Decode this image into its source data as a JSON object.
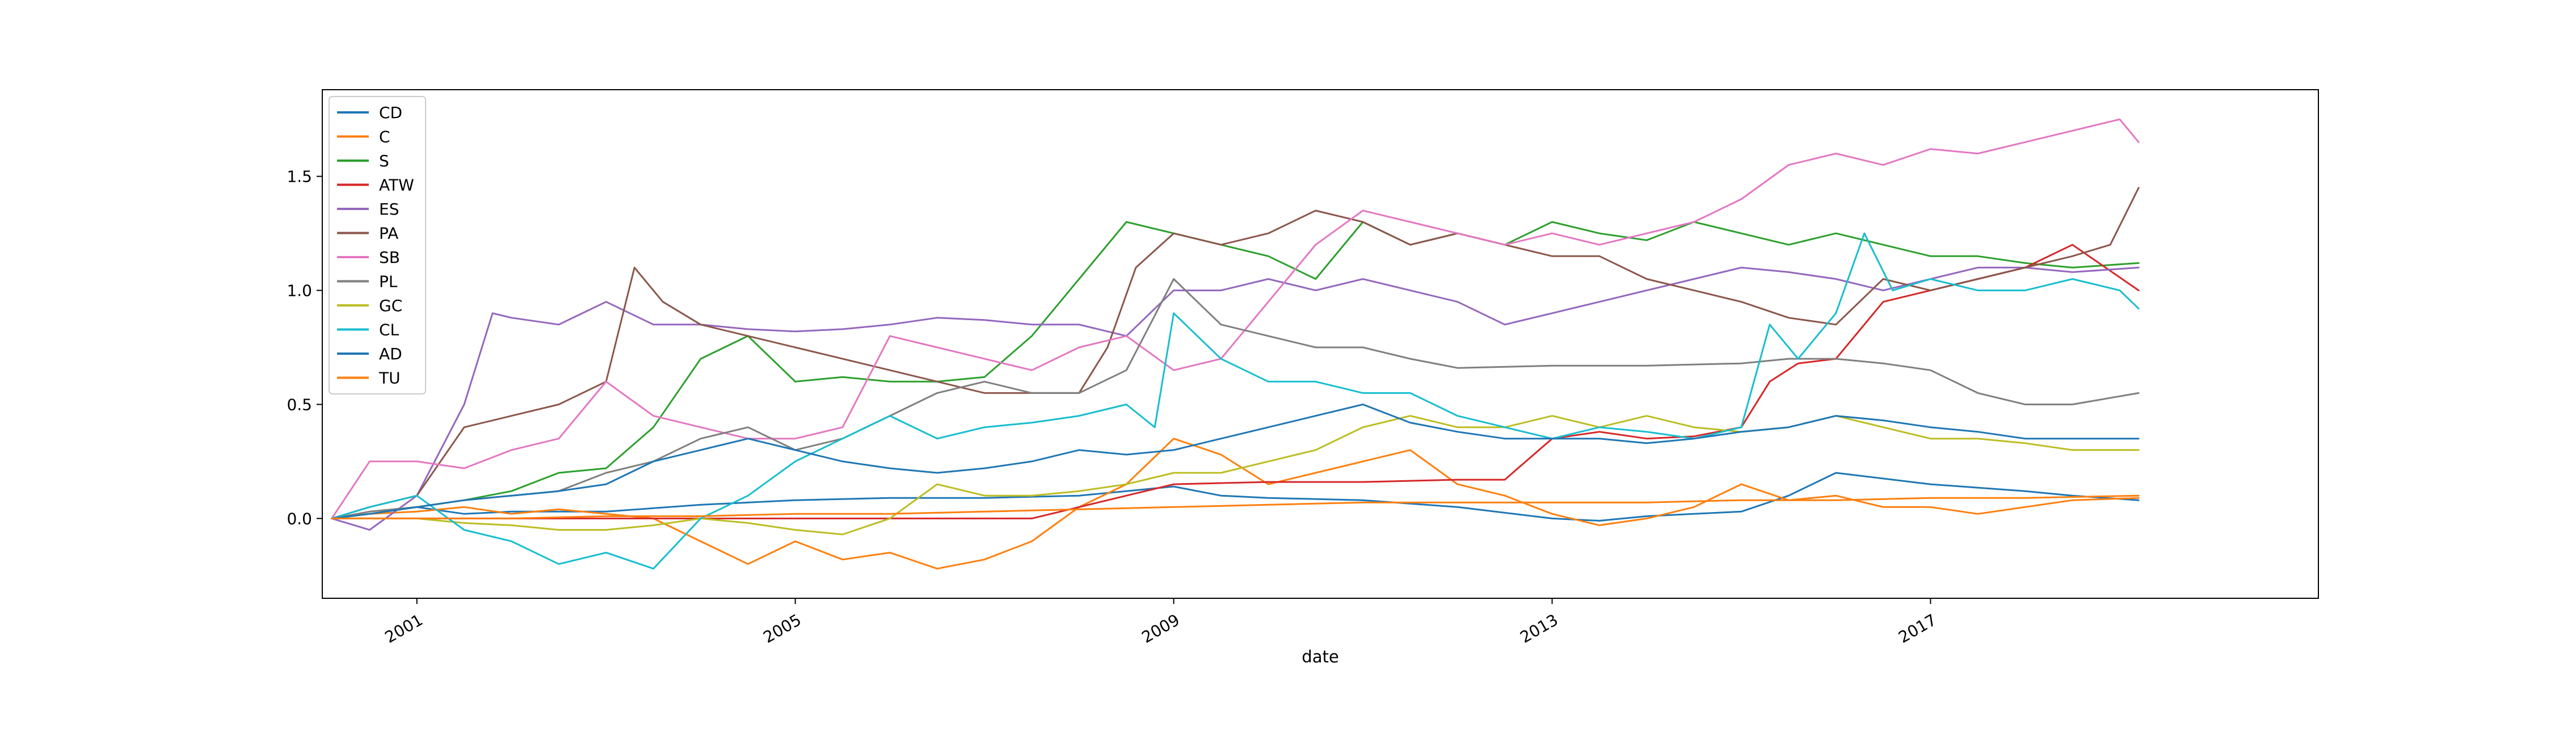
{
  "chart_data": {
    "type": "line",
    "title": "",
    "xlabel": "date",
    "ylabel": "",
    "xlim": [
      2000.0,
      2021.1
    ],
    "ylim": [
      -0.35,
      1.88
    ],
    "xticks": [
      2001,
      2005,
      2009,
      2013,
      2017
    ],
    "xtick_labels": [
      "2001",
      "2005",
      "2009",
      "2013",
      "2017"
    ],
    "yticks": [
      0.0,
      0.5,
      1.0,
      1.5
    ],
    "ytick_labels": [
      "0.0",
      "0.5",
      "1.0",
      "1.5"
    ],
    "grid": false,
    "legend_position": "upper-left",
    "series": [
      {
        "name": "CD",
        "color": "#1f77b4",
        "x": [
          2000.1,
          2000.5,
          2001.0,
          2001.5,
          2002.0,
          2003.0,
          2004.0,
          2005.0,
          2006.0,
          2007.0,
          2008.0,
          2008.5,
          2009.0,
          2009.5,
          2010.0,
          2011.0,
          2012.0,
          2013.0,
          2013.5,
          2014.0,
          2014.5,
          2015.0,
          2015.5,
          2016.0,
          2017.0,
          2018.0,
          2018.5,
          2019.2
        ],
        "y": [
          0.0,
          0.02,
          0.05,
          0.02,
          0.03,
          0.03,
          0.06,
          0.08,
          0.09,
          0.09,
          0.1,
          0.12,
          0.14,
          0.1,
          0.09,
          0.08,
          0.05,
          0.0,
          -0.01,
          0.01,
          0.02,
          0.03,
          0.1,
          0.2,
          0.15,
          0.12,
          0.1,
          0.08
        ]
      },
      {
        "name": "C",
        "color": "#ff7f0e",
        "x": [
          2000.1,
          2000.5,
          2001.0,
          2001.5,
          2002.0,
          2002.5,
          2003.0,
          2003.5,
          2004.0,
          2004.5,
          2005.0,
          2005.5,
          2006.0,
          2006.5,
          2007.0,
          2007.5,
          2008.0,
          2008.5,
          2009.0,
          2009.5,
          2010.0,
          2010.5,
          2011.0,
          2011.5,
          2012.0,
          2012.5,
          2013.0,
          2013.5,
          2014.0,
          2014.5,
          2015.0,
          2015.5,
          2016.0,
          2016.5,
          2017.0,
          2017.5,
          2018.0,
          2018.5,
          2019.2
        ],
        "y": [
          0.0,
          0.02,
          0.03,
          0.05,
          0.02,
          0.04,
          0.02,
          0.0,
          -0.1,
          -0.2,
          -0.1,
          -0.18,
          -0.15,
          -0.22,
          -0.18,
          -0.1,
          0.05,
          0.15,
          0.35,
          0.28,
          0.15,
          0.2,
          0.25,
          0.3,
          0.15,
          0.1,
          0.02,
          -0.03,
          0.0,
          0.05,
          0.15,
          0.08,
          0.1,
          0.05,
          0.05,
          0.02,
          0.05,
          0.08,
          0.09
        ]
      },
      {
        "name": "S",
        "color": "#2ca02c",
        "x": [
          2000.1,
          2000.5,
          2001.0,
          2001.5,
          2002.0,
          2002.5,
          2003.0,
          2003.5,
          2004.0,
          2004.5,
          2005.0,
          2005.5,
          2006.0,
          2006.5,
          2007.0,
          2007.5,
          2008.0,
          2008.5,
          2009.0,
          2009.5,
          2010.0,
          2010.5,
          2011.0,
          2011.5,
          2012.0,
          2012.5,
          2013.0,
          2013.5,
          2014.0,
          2014.5,
          2015.0,
          2015.5,
          2016.0,
          2016.5,
          2017.0,
          2017.5,
          2018.0,
          2018.5,
          2019.2
        ],
        "y": [
          0.0,
          0.02,
          0.05,
          0.08,
          0.12,
          0.2,
          0.22,
          0.4,
          0.7,
          0.8,
          0.6,
          0.62,
          0.6,
          0.6,
          0.62,
          0.8,
          1.05,
          1.3,
          1.25,
          1.2,
          1.15,
          1.05,
          1.3,
          1.2,
          1.25,
          1.2,
          1.3,
          1.25,
          1.22,
          1.3,
          1.25,
          1.2,
          1.25,
          1.2,
          1.15,
          1.15,
          1.12,
          1.1,
          1.12
        ]
      },
      {
        "name": "ATW",
        "color": "#d62728",
        "x": [
          2000.1,
          2001.0,
          2002.0,
          2003.0,
          2004.0,
          2005.0,
          2006.0,
          2007.0,
          2007.5,
          2008.0,
          2008.5,
          2009.0,
          2010.0,
          2011.0,
          2012.0,
          2012.5,
          2013.0,
          2013.5,
          2014.0,
          2014.5,
          2015.0,
          2015.3,
          2015.6,
          2016.0,
          2016.5,
          2017.0,
          2017.5,
          2018.0,
          2018.5,
          2019.2
        ],
        "y": [
          0.0,
          0.0,
          0.0,
          0.0,
          0.0,
          0.0,
          0.0,
          0.0,
          0.0,
          0.05,
          0.1,
          0.15,
          0.16,
          0.16,
          0.17,
          0.17,
          0.35,
          0.38,
          0.35,
          0.36,
          0.4,
          0.6,
          0.68,
          0.7,
          0.95,
          1.0,
          1.05,
          1.1,
          1.2,
          1.0
        ]
      },
      {
        "name": "ES",
        "color": "#9467bd",
        "x": [
          2000.1,
          2000.5,
          2001.0,
          2001.5,
          2001.8,
          2002.0,
          2002.5,
          2003.0,
          2003.5,
          2004.0,
          2004.5,
          2005.0,
          2005.5,
          2006.0,
          2006.5,
          2007.0,
          2007.5,
          2008.0,
          2008.5,
          2009.0,
          2009.5,
          2010.0,
          2010.5,
          2011.0,
          2011.5,
          2012.0,
          2012.5,
          2013.0,
          2013.5,
          2014.0,
          2014.5,
          2015.0,
          2015.5,
          2016.0,
          2016.5,
          2017.0,
          2017.5,
          2018.0,
          2018.5,
          2019.2
        ],
        "y": [
          0.0,
          -0.05,
          0.1,
          0.5,
          0.9,
          0.88,
          0.85,
          0.95,
          0.85,
          0.85,
          0.83,
          0.82,
          0.83,
          0.85,
          0.88,
          0.87,
          0.85,
          0.85,
          0.8,
          1.0,
          1.0,
          1.05,
          1.0,
          1.05,
          1.0,
          0.95,
          0.85,
          0.9,
          0.95,
          1.0,
          1.05,
          1.1,
          1.08,
          1.05,
          1.0,
          1.05,
          1.1,
          1.1,
          1.08,
          1.1
        ]
      },
      {
        "name": "PA",
        "color": "#8c564b",
        "x": [
          2000.1,
          2000.5,
          2001.0,
          2001.5,
          2002.0,
          2002.5,
          2003.0,
          2003.3,
          2003.6,
          2004.0,
          2004.5,
          2005.0,
          2005.5,
          2006.0,
          2006.5,
          2007.0,
          2007.5,
          2008.0,
          2008.3,
          2008.6,
          2009.0,
          2009.5,
          2010.0,
          2010.5,
          2011.0,
          2011.5,
          2012.0,
          2012.5,
          2013.0,
          2013.5,
          2014.0,
          2014.5,
          2015.0,
          2015.5,
          2016.0,
          2016.5,
          2017.0,
          2017.5,
          2018.0,
          2018.5,
          2018.9,
          2019.2
        ],
        "y": [
          0.0,
          0.05,
          0.1,
          0.4,
          0.45,
          0.5,
          0.6,
          1.1,
          0.95,
          0.85,
          0.8,
          0.75,
          0.7,
          0.65,
          0.6,
          0.55,
          0.55,
          0.55,
          0.75,
          1.1,
          1.25,
          1.2,
          1.25,
          1.35,
          1.3,
          1.2,
          1.25,
          1.2,
          1.15,
          1.15,
          1.05,
          1.0,
          0.95,
          0.88,
          0.85,
          1.05,
          1.0,
          1.05,
          1.1,
          1.15,
          1.2,
          1.45
        ]
      },
      {
        "name": "SB",
        "color": "#e377c2",
        "x": [
          2000.1,
          2000.5,
          2001.0,
          2001.5,
          2002.0,
          2002.5,
          2003.0,
          2003.5,
          2004.0,
          2004.5,
          2005.0,
          2005.5,
          2006.0,
          2006.5,
          2007.0,
          2007.5,
          2008.0,
          2008.5,
          2009.0,
          2009.5,
          2010.0,
          2010.5,
          2011.0,
          2011.5,
          2012.0,
          2012.5,
          2013.0,
          2013.5,
          2014.0,
          2014.5,
          2015.0,
          2015.5,
          2016.0,
          2016.5,
          2017.0,
          2017.5,
          2018.0,
          2018.5,
          2019.0,
          2019.2
        ],
        "y": [
          0.0,
          0.25,
          0.25,
          0.22,
          0.3,
          0.35,
          0.6,
          0.45,
          0.4,
          0.35,
          0.35,
          0.4,
          0.8,
          0.75,
          0.7,
          0.65,
          0.75,
          0.8,
          0.65,
          0.7,
          0.95,
          1.2,
          1.35,
          1.3,
          1.25,
          1.2,
          1.25,
          1.2,
          1.25,
          1.3,
          1.4,
          1.55,
          1.6,
          1.55,
          1.62,
          1.6,
          1.65,
          1.7,
          1.75,
          1.65
        ]
      },
      {
        "name": "PL",
        "color": "#7f7f7f",
        "x": [
          2000.1,
          2000.5,
          2001.0,
          2001.5,
          2002.0,
          2002.5,
          2003.0,
          2003.5,
          2004.0,
          2004.5,
          2005.0,
          2005.5,
          2006.0,
          2006.5,
          2007.0,
          2007.5,
          2008.0,
          2008.5,
          2009.0,
          2009.5,
          2010.0,
          2010.5,
          2011.0,
          2011.5,
          2012.0,
          2013.0,
          2014.0,
          2015.0,
          2015.5,
          2016.0,
          2016.5,
          2017.0,
          2017.5,
          2018.0,
          2018.5,
          2019.2
        ],
        "y": [
          0.0,
          0.03,
          0.05,
          0.08,
          0.1,
          0.12,
          0.2,
          0.25,
          0.35,
          0.4,
          0.3,
          0.35,
          0.45,
          0.55,
          0.6,
          0.55,
          0.55,
          0.65,
          1.05,
          0.85,
          0.8,
          0.75,
          0.75,
          0.7,
          0.66,
          0.67,
          0.67,
          0.68,
          0.7,
          0.7,
          0.68,
          0.65,
          0.55,
          0.5,
          0.5,
          0.55
        ]
      },
      {
        "name": "GC",
        "color": "#bcbd22",
        "x": [
          2000.1,
          2000.5,
          2001.0,
          2001.5,
          2002.0,
          2002.5,
          2003.0,
          2003.5,
          2004.0,
          2004.5,
          2005.0,
          2005.5,
          2006.0,
          2006.5,
          2007.0,
          2007.5,
          2008.0,
          2008.5,
          2009.0,
          2009.5,
          2010.0,
          2010.5,
          2011.0,
          2011.5,
          2012.0,
          2012.5,
          2013.0,
          2013.5,
          2014.0,
          2014.5,
          2015.0,
          2015.5,
          2016.0,
          2016.5,
          2017.0,
          2017.5,
          2018.0,
          2018.5,
          2019.2
        ],
        "y": [
          0.0,
          0.0,
          0.0,
          -0.02,
          -0.03,
          -0.05,
          -0.05,
          -0.03,
          0.0,
          -0.02,
          -0.05,
          -0.07,
          0.0,
          0.15,
          0.1,
          0.1,
          0.12,
          0.15,
          0.2,
          0.2,
          0.25,
          0.3,
          0.4,
          0.45,
          0.4,
          0.4,
          0.45,
          0.4,
          0.45,
          0.4,
          0.38,
          0.4,
          0.45,
          0.4,
          0.35,
          0.35,
          0.33,
          0.3,
          0.3
        ]
      },
      {
        "name": "CL",
        "color": "#17becf",
        "x": [
          2000.1,
          2000.5,
          2001.0,
          2001.5,
          2002.0,
          2002.5,
          2003.0,
          2003.5,
          2004.0,
          2004.5,
          2005.0,
          2005.5,
          2006.0,
          2006.5,
          2007.0,
          2007.5,
          2008.0,
          2008.5,
          2008.8,
          2009.0,
          2009.5,
          2010.0,
          2010.5,
          2011.0,
          2011.5,
          2012.0,
          2012.5,
          2013.0,
          2013.5,
          2014.0,
          2014.5,
          2015.0,
          2015.3,
          2015.6,
          2016.0,
          2016.3,
          2016.6,
          2017.0,
          2017.5,
          2018.0,
          2018.5,
          2019.0,
          2019.2
        ],
        "y": [
          0.0,
          0.05,
          0.1,
          -0.05,
          -0.1,
          -0.2,
          -0.15,
          -0.22,
          0.0,
          0.1,
          0.25,
          0.35,
          0.45,
          0.35,
          0.4,
          0.42,
          0.45,
          0.5,
          0.4,
          0.9,
          0.7,
          0.6,
          0.6,
          0.55,
          0.55,
          0.45,
          0.4,
          0.35,
          0.4,
          0.38,
          0.35,
          0.4,
          0.85,
          0.7,
          0.9,
          1.25,
          1.0,
          1.05,
          1.0,
          1.0,
          1.05,
          1.0,
          0.92
        ]
      },
      {
        "name": "AD",
        "color": "#1f77b4",
        "x": [
          2000.1,
          2000.5,
          2001.0,
          2001.5,
          2002.0,
          2002.5,
          2003.0,
          2003.5,
          2004.0,
          2004.5,
          2005.0,
          2005.5,
          2006.0,
          2006.5,
          2007.0,
          2007.5,
          2008.0,
          2008.5,
          2009.0,
          2009.5,
          2010.0,
          2010.5,
          2011.0,
          2011.5,
          2012.0,
          2012.5,
          2013.0,
          2013.5,
          2014.0,
          2014.5,
          2015.0,
          2015.5,
          2016.0,
          2016.5,
          2017.0,
          2017.5,
          2018.0,
          2018.5,
          2019.2
        ],
        "y": [
          0.0,
          0.02,
          0.05,
          0.08,
          0.1,
          0.12,
          0.15,
          0.25,
          0.3,
          0.35,
          0.3,
          0.25,
          0.22,
          0.2,
          0.22,
          0.25,
          0.3,
          0.28,
          0.3,
          0.35,
          0.4,
          0.45,
          0.5,
          0.42,
          0.38,
          0.35,
          0.35,
          0.35,
          0.33,
          0.35,
          0.38,
          0.4,
          0.45,
          0.43,
          0.4,
          0.38,
          0.35,
          0.35,
          0.35
        ]
      },
      {
        "name": "TU",
        "color": "#ff7f0e",
        "x": [
          2000.1,
          2001.0,
          2002.0,
          2003.0,
          2004.0,
          2005.0,
          2006.0,
          2007.0,
          2008.0,
          2009.0,
          2010.0,
          2011.0,
          2012.0,
          2013.0,
          2014.0,
          2015.0,
          2016.0,
          2017.0,
          2018.0,
          2019.2
        ],
        "y": [
          0.0,
          0.0,
          0.0,
          0.01,
          0.01,
          0.02,
          0.02,
          0.03,
          0.04,
          0.05,
          0.06,
          0.07,
          0.07,
          0.07,
          0.07,
          0.08,
          0.08,
          0.09,
          0.09,
          0.1
        ]
      }
    ]
  }
}
